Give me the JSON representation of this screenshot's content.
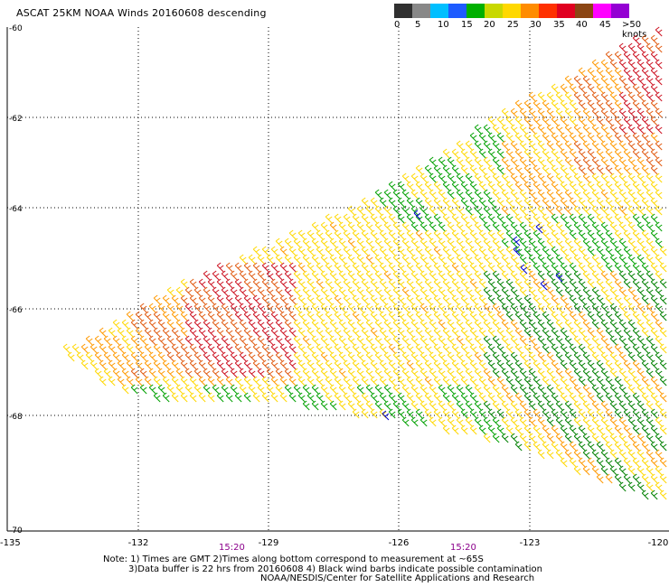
{
  "title": "ASCAT 25KM NOAA Winds 20160608 descending",
  "legend": {
    "colors": [
      "#303030",
      "#888888",
      "#00bfff",
      "#1e5bff",
      "#00b000",
      "#c8d800",
      "#ffd800",
      "#ff8c00",
      "#ff3000",
      "#e00020",
      "#8b4513",
      "#ff00ff",
      "#9400d3"
    ],
    "labels": [
      "0",
      "5",
      "10",
      "15",
      "20",
      "25",
      "30",
      "35",
      "40",
      "45",
      ">50 knots"
    ]
  },
  "map": {
    "lon_ticks": [
      "-135",
      "-132",
      "-129",
      "-126",
      "-123",
      "-120"
    ],
    "lat_ticks": [
      "-60",
      "-62",
      "-64",
      "-66",
      "-68",
      "-70"
    ],
    "gridlines": true,
    "times": [
      "15:20",
      "15:20"
    ]
  },
  "notes": [
    "Note: 1) Times are GMT 2)Times along bottom correspond to measurement at ~65S",
    "3)Data buffer is 22 hrs from 20160608 4) Black wind barbs indicate possible contamination",
    "NOAA/NESDIS/Center for Satellite Applications and Research"
  ],
  "barb_colors": {
    "calm": "#0000cc",
    "light": "#00a000",
    "dark_green": "#008000",
    "moderate": "#ffd800",
    "fresh": "#ff9900",
    "strong": "#e05a10",
    "gale": "#cc1020"
  }
}
